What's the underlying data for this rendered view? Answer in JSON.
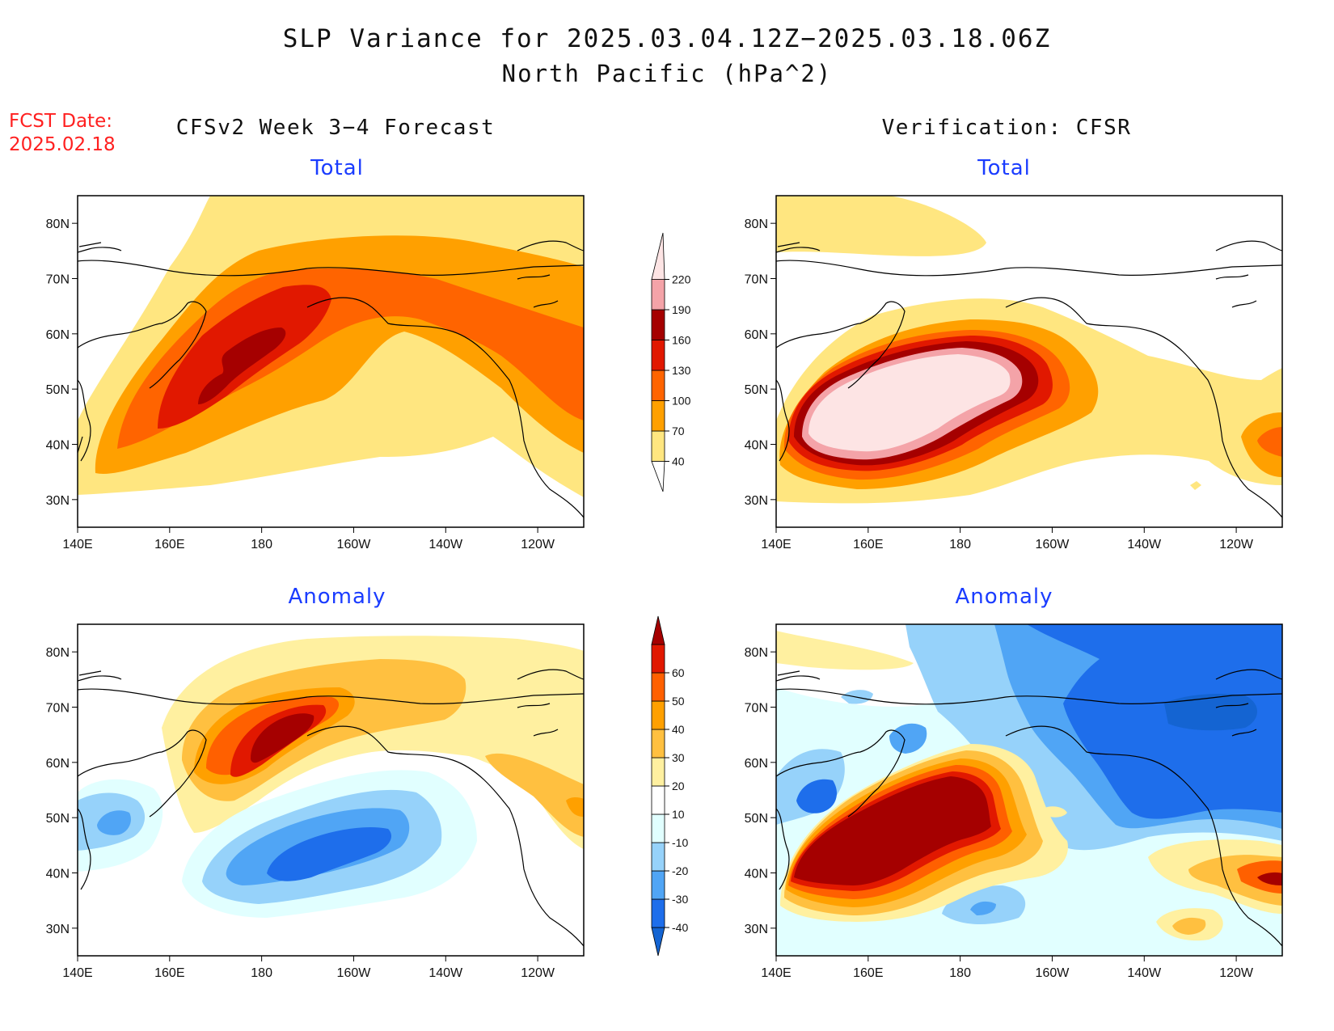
{
  "title_line1": "SLP Variance for 2025.03.04.12Z−2025.03.18.06Z",
  "title_line2": "North Pacific (hPa^2)",
  "fcst_label": "FCST Date:",
  "fcst_date": "2025.02.18",
  "left_header": "CFSv2 Week 3−4 Forecast",
  "right_header": "Verification: CFSR",
  "panel_total_label": "Total",
  "panel_anomaly_label": "Anomaly",
  "lat_labels": [
    "80N",
    "70N",
    "60N",
    "50N",
    "40N",
    "30N"
  ],
  "lon_labels": [
    "140E",
    "160E",
    "180",
    "160W",
    "140W",
    "120W"
  ],
  "total_colorbar": {
    "levels": [
      "40",
      "70",
      "100",
      "130",
      "160",
      "190",
      "220"
    ],
    "colors": [
      "#ffffff",
      "#ffe680",
      "#ffa000",
      "#ff6400",
      "#e11800",
      "#a50000",
      "#f4a3a8",
      "#fde4e4"
    ]
  },
  "anomaly_colorbar": {
    "levels": [
      "-40",
      "-30",
      "-20",
      "-10",
      "10",
      "20",
      "30",
      "40",
      "50",
      "60"
    ],
    "colors": [
      "#1464d2",
      "#1e6eeb",
      "#50a5f5",
      "#96d2fa",
      "#e1ffff",
      "#ffffff",
      "#fff0a0",
      "#ffc040",
      "#ffa000",
      "#ff6000",
      "#e11800",
      "#a50000"
    ]
  }
}
